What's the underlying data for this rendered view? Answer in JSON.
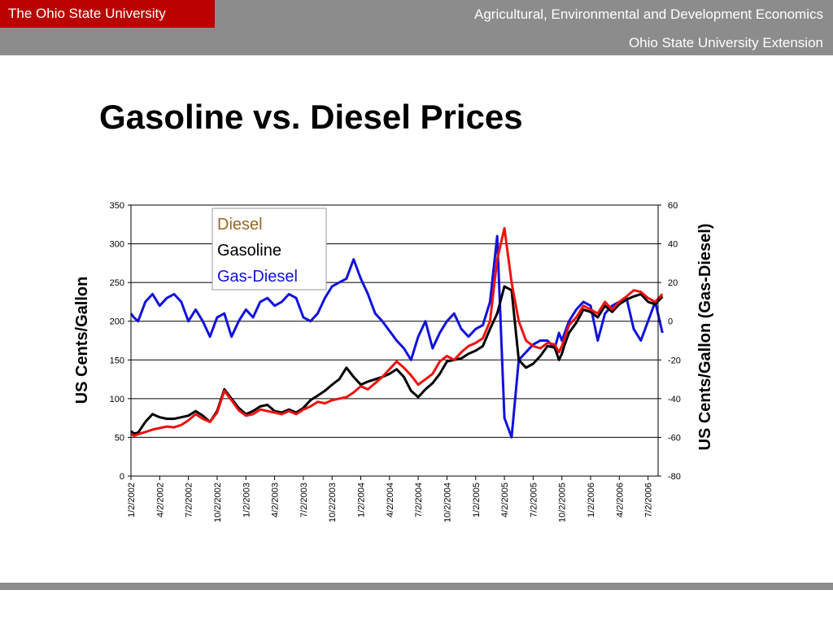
{
  "header": {
    "brand": "The Ohio State University",
    "department": "Agricultural, Environmental and Development Economics",
    "extension": "Ohio State University Extension"
  },
  "colors": {
    "diesel": "#ee1111",
    "gasoline": "#000000",
    "gas_diesel": "#1111dd",
    "brand": "#bb0000",
    "bar": "#8c8c8c"
  },
  "chart_data": {
    "type": "line",
    "title": "Gasoline vs. Diesel Prices",
    "ylabel": "US Cents/Gallon",
    "y2label": "US Cents/Gallon (Gas-Diesel)",
    "ylim": [
      0,
      350
    ],
    "y2lim": [
      -80,
      60
    ],
    "yticks": [
      0,
      50,
      100,
      150,
      200,
      250,
      300,
      350
    ],
    "y2ticks": [
      -80,
      -60,
      -40,
      -20,
      0,
      20,
      40,
      60
    ],
    "xticks": [
      "1/2/2002",
      "4/2/2002",
      "7/2/2002",
      "10/2/2002",
      "1/2/2003",
      "4/2/2003",
      "7/2/2003",
      "10/2/2003",
      "1/2/2004",
      "4/2/2004",
      "7/2/2004",
      "10/2/2004",
      "1/2/2005",
      "4/2/2005",
      "7/2/2005",
      "10/2/2005",
      "1/2/2006",
      "4/2/2006",
      "7/2/2006"
    ],
    "grid": "horizontal",
    "legend_position": "top-left-inside",
    "series": [
      {
        "name": "Diesel",
        "axis": "left",
        "color": "#ee1111",
        "x": [
          0,
          0.1,
          0.25,
          0.5,
          0.75,
          1,
          1.25,
          1.5,
          1.75,
          2,
          2.25,
          2.5,
          2.75,
          3,
          3.25,
          3.5,
          3.75,
          4,
          4.25,
          4.5,
          4.75,
          5,
          5.25,
          5.5,
          5.75,
          6,
          6.25,
          6.5,
          6.75,
          7,
          7.25,
          7.5,
          7.75,
          8,
          8.25,
          8.5,
          8.75,
          9,
          9.25,
          9.5,
          9.75,
          10,
          10.25,
          10.5,
          10.75,
          11,
          11.25,
          11.5,
          11.75,
          12,
          12.25,
          12.5,
          12.75,
          13,
          13.25,
          13.5,
          13.75,
          14,
          14.25,
          14.5,
          14.75,
          14.9,
          15,
          15.1,
          15.25,
          15.5,
          15.75,
          16,
          16.25,
          16.5,
          16.75,
          17,
          17.25,
          17.5,
          17.75,
          18,
          18.25,
          18.5
        ],
        "values": [
          55,
          52,
          54,
          57,
          60,
          62,
          64,
          63,
          66,
          72,
          80,
          74,
          70,
          82,
          110,
          98,
          85,
          78,
          80,
          86,
          84,
          82,
          80,
          84,
          80,
          86,
          90,
          96,
          94,
          98,
          100,
          102,
          108,
          116,
          112,
          120,
          128,
          138,
          148,
          140,
          130,
          118,
          125,
          132,
          148,
          155,
          150,
          160,
          168,
          172,
          178,
          200,
          280,
          320,
          250,
          200,
          175,
          168,
          165,
          172,
          170,
          160,
          168,
          178,
          195,
          205,
          220,
          215,
          210,
          225,
          215,
          225,
          232,
          240,
          238,
          230,
          225,
          235
        ]
      },
      {
        "name": "Gasoline",
        "axis": "left",
        "color": "#000000",
        "x": [
          0,
          0.1,
          0.25,
          0.5,
          0.75,
          1,
          1.25,
          1.5,
          1.75,
          2,
          2.25,
          2.5,
          2.75,
          3,
          3.25,
          3.5,
          3.75,
          4,
          4.25,
          4.5,
          4.75,
          5,
          5.25,
          5.5,
          5.75,
          6,
          6.25,
          6.5,
          6.75,
          7,
          7.25,
          7.5,
          7.75,
          8,
          8.25,
          8.5,
          8.75,
          9,
          9.25,
          9.5,
          9.75,
          10,
          10.25,
          10.5,
          10.75,
          11,
          11.25,
          11.5,
          11.75,
          12,
          12.25,
          12.5,
          12.75,
          13,
          13.25,
          13.5,
          13.75,
          14,
          14.25,
          14.5,
          14.75,
          14.9,
          15,
          15.1,
          15.25,
          15.5,
          15.75,
          16,
          16.25,
          16.5,
          16.75,
          17,
          17.25,
          17.5,
          17.75,
          18,
          18.25,
          18.5
        ],
        "values": [
          58,
          55,
          56,
          70,
          80,
          76,
          74,
          74,
          76,
          78,
          84,
          78,
          70,
          84,
          112,
          100,
          88,
          80,
          84,
          90,
          92,
          84,
          82,
          86,
          82,
          88,
          98,
          104,
          110,
          118,
          125,
          140,
          128,
          118,
          122,
          125,
          128,
          132,
          138,
          128,
          110,
          102,
          112,
          120,
          132,
          148,
          150,
          152,
          158,
          162,
          168,
          190,
          210,
          245,
          240,
          150,
          140,
          145,
          155,
          168,
          166,
          150,
          158,
          170,
          185,
          198,
          215,
          212,
          205,
          220,
          212,
          222,
          228,
          232,
          235,
          225,
          222,
          232
        ]
      },
      {
        "name": "Gas-Diesel",
        "axis": "right",
        "color": "#1111dd",
        "x": [
          0,
          0.1,
          0.25,
          0.5,
          0.75,
          1,
          1.25,
          1.5,
          1.75,
          2,
          2.25,
          2.5,
          2.75,
          3,
          3.25,
          3.5,
          3.75,
          4,
          4.25,
          4.5,
          4.75,
          5,
          5.25,
          5.5,
          5.75,
          6,
          6.25,
          6.5,
          6.75,
          7,
          7.25,
          7.5,
          7.75,
          8,
          8.25,
          8.5,
          8.75,
          9,
          9.25,
          9.5,
          9.75,
          10,
          10.25,
          10.5,
          10.75,
          11,
          11.25,
          11.5,
          11.75,
          12,
          12.25,
          12.5,
          12.75,
          13,
          13.25,
          13.5,
          13.75,
          14,
          14.25,
          14.5,
          14.75,
          14.9,
          15,
          15.1,
          15.25,
          15.5,
          15.75,
          16,
          16.25,
          16.5,
          16.75,
          17,
          17.25,
          17.5,
          17.75,
          18,
          18.25,
          18.5
        ],
        "values": [
          4,
          2,
          0,
          10,
          14,
          8,
          12,
          14,
          10,
          0,
          6,
          0,
          -8,
          2,
          4,
          -8,
          0,
          6,
          2,
          10,
          12,
          8,
          10,
          14,
          12,
          2,
          0,
          4,
          12,
          18,
          20,
          22,
          32,
          22,
          14,
          4,
          0,
          -5,
          -10,
          -14,
          -20,
          -8,
          0,
          -14,
          -6,
          0,
          4,
          -4,
          -8,
          -4,
          -2,
          10,
          44,
          -50,
          -60,
          -20,
          -16,
          -12,
          -10,
          -10,
          -14,
          -6,
          -10,
          -6,
          0,
          6,
          10,
          8,
          -10,
          4,
          8,
          10,
          12,
          -4,
          -10,
          0,
          10,
          -6
        ]
      }
    ]
  }
}
